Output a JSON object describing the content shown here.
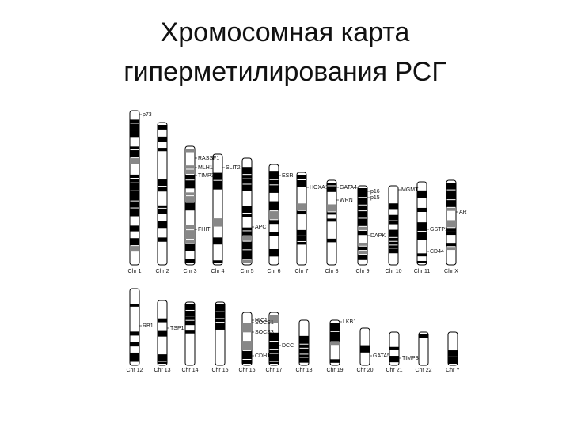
{
  "header": {
    "title_lines": [
      "Хромосомная карта",
      "гиперметилирования РСГ"
    ]
  },
  "figure": {
    "chromosomes": [
      "Chr 1",
      "Chr 2",
      "Chr 3",
      "Chr 4",
      "Chr 5",
      "Chr 6",
      "Chr 7",
      "Chr 8",
      "Chr 9",
      "Chr 10",
      "Chr 11",
      "Chr X",
      "Chr 12",
      "Chr 13",
      "Chr 14",
      "Chr 15",
      "Chr 16",
      "Chr 17",
      "Chr 18",
      "Chr 19",
      "Chr 20",
      "Chr 21",
      "Chr 22",
      "Chr Y"
    ],
    "genes": [
      "p73",
      "RASSF1",
      "MLH1",
      "TIMP3",
      "FHIT",
      "SLIT2",
      "ESR",
      "APC",
      "HOXA1",
      "GATA4",
      "WRN",
      "p16",
      "p15",
      "DAPK",
      "MGMT",
      "GSTP1",
      "CD44",
      "AR",
      "RB1",
      "HIC1",
      "CDH1",
      "SOCS1",
      "SOCS3",
      "DCC",
      "LKB1",
      "TSP1",
      "GATA5",
      "TIMP3"
    ]
  }
}
